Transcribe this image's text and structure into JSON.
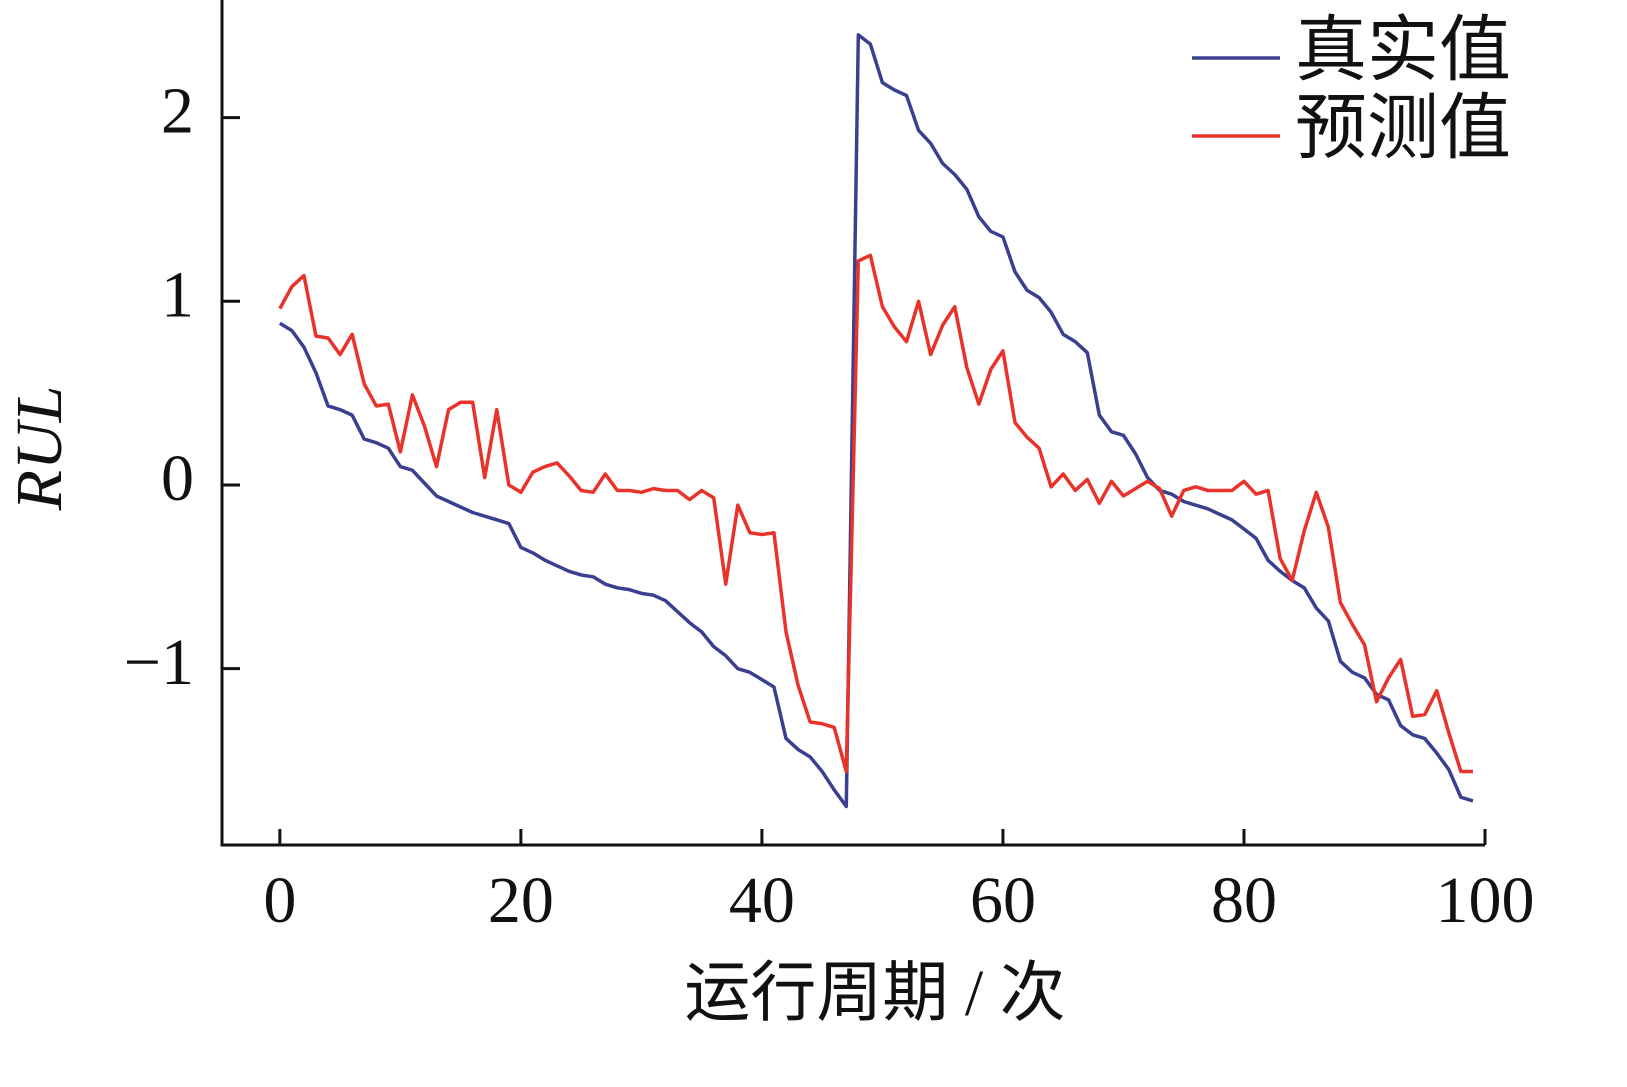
{
  "chart_data": {
    "type": "line",
    "x_label": "运行周期 / 次",
    "y_label": "RUL",
    "x": [
      0,
      1,
      2,
      3,
      4,
      5,
      6,
      7,
      8,
      9,
      10,
      11,
      12,
      13,
      14,
      15,
      16,
      17,
      18,
      19,
      20,
      21,
      22,
      23,
      24,
      25,
      26,
      27,
      28,
      29,
      30,
      31,
      32,
      33,
      34,
      35,
      36,
      37,
      38,
      39,
      40,
      41,
      42,
      43,
      44,
      45,
      46,
      47,
      48,
      49,
      50,
      51,
      52,
      53,
      54,
      55,
      56,
      57,
      58,
      59,
      60,
      61,
      62,
      63,
      64,
      65,
      66,
      67,
      68,
      69,
      70,
      71,
      72,
      73,
      74,
      75,
      76,
      77,
      78,
      79,
      80,
      81,
      82,
      83,
      84,
      85,
      86,
      87,
      88,
      89,
      90,
      91,
      92,
      93,
      94,
      95,
      96,
      97,
      98,
      99
    ],
    "series": [
      {
        "name": "真实值",
        "color": "#3a3f8f",
        "values": [
          0.88,
          0.84,
          0.75,
          0.61,
          0.43,
          0.41,
          0.38,
          0.25,
          0.23,
          0.2,
          0.1,
          0.08,
          0.01,
          -0.06,
          -0.09,
          -0.12,
          -0.15,
          -0.17,
          -0.19,
          -0.21,
          -0.34,
          -0.37,
          -0.41,
          -0.44,
          -0.47,
          -0.49,
          -0.5,
          -0.54,
          -0.56,
          -0.57,
          -0.59,
          -0.6,
          -0.63,
          -0.69,
          -0.75,
          -0.8,
          -0.88,
          -0.93,
          -1.0,
          -1.02,
          -1.06,
          -1.1,
          -1.38,
          -1.44,
          -1.48,
          -1.56,
          -1.66,
          -1.75,
          2.45,
          2.4,
          2.19,
          2.15,
          2.12,
          1.93,
          1.86,
          1.75,
          1.69,
          1.61,
          1.46,
          1.38,
          1.35,
          1.16,
          1.06,
          1.02,
          0.94,
          0.82,
          0.78,
          0.72,
          0.38,
          0.29,
          0.27,
          0.17,
          0.04,
          -0.03,
          -0.05,
          -0.09,
          -0.11,
          -0.13,
          -0.16,
          -0.19,
          -0.24,
          -0.29,
          -0.41,
          -0.47,
          -0.52,
          -0.56,
          -0.67,
          -0.74,
          -0.96,
          -1.02,
          -1.05,
          -1.14,
          -1.17,
          -1.31,
          -1.36,
          -1.38,
          -1.46,
          -1.55,
          -1.7,
          -1.72
        ]
      },
      {
        "name": "预测值",
        "color": "#e8322a",
        "values": [
          0.96,
          1.08,
          1.14,
          0.81,
          0.8,
          0.71,
          0.82,
          0.55,
          0.43,
          0.44,
          0.18,
          0.49,
          0.32,
          0.1,
          0.41,
          0.45,
          0.45,
          0.04,
          0.41,
          0.0,
          -0.04,
          0.07,
          0.1,
          0.12,
          0.05,
          -0.03,
          -0.04,
          0.06,
          -0.03,
          -0.03,
          -0.04,
          -0.02,
          -0.03,
          -0.03,
          -0.08,
          -0.03,
          -0.07,
          -0.54,
          -0.11,
          -0.26,
          -0.27,
          -0.26,
          -0.8,
          -1.09,
          -1.29,
          -1.3,
          -1.32,
          -1.56,
          1.22,
          1.25,
          0.97,
          0.86,
          0.78,
          1.0,
          0.71,
          0.87,
          0.97,
          0.64,
          0.44,
          0.63,
          0.73,
          0.34,
          0.26,
          0.2,
          -0.01,
          0.06,
          -0.03,
          0.03,
          -0.1,
          0.02,
          -0.06,
          -0.02,
          0.02,
          -0.02,
          -0.17,
          -0.03,
          -0.01,
          -0.03,
          -0.03,
          -0.03,
          0.02,
          -0.05,
          -0.03,
          -0.4,
          -0.52,
          -0.25,
          -0.04,
          -0.23,
          -0.64,
          -0.76,
          -0.87,
          -1.18,
          -1.05,
          -0.95,
          -1.26,
          -1.25,
          -1.12,
          -1.35,
          -1.56,
          -1.56
        ]
      }
    ],
    "xlim": [
      -4.8,
      100
    ],
    "xticks": [
      0,
      20,
      40,
      60,
      80,
      100
    ],
    "ylim": [
      -1.96,
      2.64
    ],
    "yticks": [
      {
        "value": -1,
        "label": "−1"
      },
      0,
      1,
      2
    ],
    "legend": "upper right"
  }
}
